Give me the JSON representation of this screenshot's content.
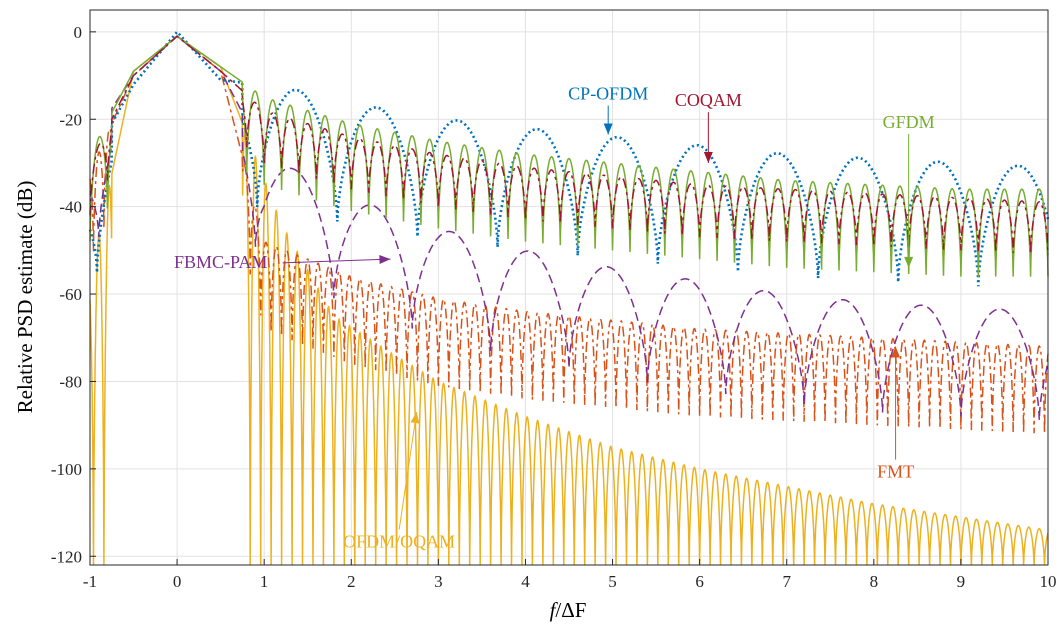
{
  "chart_data": {
    "type": "line",
    "xlabel": "f/ΔF",
    "xlabel_parts": [
      "f",
      "/ΔF"
    ],
    "ylabel": "Relative PSD estimate (dB)",
    "xlim": [
      -1,
      10
    ],
    "ylim": [
      -122,
      5
    ],
    "x_ticks": [
      "-1",
      "0",
      "1",
      "2",
      "3",
      "4",
      "5",
      "6",
      "7",
      "8",
      "9",
      "10"
    ],
    "y_ticks": [
      "0",
      "-20",
      "-40",
      "-60",
      "-80",
      "-100",
      "-120"
    ],
    "grid": true,
    "series": [
      {
        "name": "OFDM/OQAM",
        "color": "#EDB120",
        "style": "solid",
        "peaks": [
          [
            -1.0,
            -56
          ],
          [
            -0.5,
            -9
          ],
          [
            0,
            -1
          ],
          [
            0.5,
            -8
          ],
          [
            1.2,
            -44
          ],
          [
            1.8,
            -65
          ],
          [
            2.5,
            -74
          ],
          [
            3.0,
            -80
          ],
          [
            4.0,
            -88
          ],
          [
            5.0,
            -95
          ],
          [
            6.0,
            -100
          ],
          [
            7.0,
            -104
          ],
          [
            8.0,
            -108
          ],
          [
            9.0,
            -111
          ],
          [
            10.0,
            -114
          ]
        ],
        "null_floor": -122,
        "period": 0.12
      },
      {
        "name": "FMT",
        "color": "#D95319",
        "style": "dashdot",
        "peaks": [
          [
            -1.0,
            -32
          ],
          [
            -0.5,
            -10
          ],
          [
            0,
            -1
          ],
          [
            0.5,
            -9
          ],
          [
            1.0,
            -48
          ],
          [
            2.0,
            -56
          ],
          [
            3.0,
            -61
          ],
          [
            4.0,
            -64
          ],
          [
            5.0,
            -66
          ],
          [
            6.0,
            -68
          ],
          [
            7.0,
            -69
          ],
          [
            8.0,
            -70
          ],
          [
            9.0,
            -71
          ],
          [
            10.0,
            -72
          ]
        ],
        "null_offset": 20,
        "period": 0.12
      },
      {
        "name": "FBMC-PAM",
        "color": "#7E2F8E",
        "style": "dashed",
        "peaks": [
          [
            -1.0,
            -25
          ],
          [
            -0.5,
            -10
          ],
          [
            0,
            -1
          ],
          [
            0.5,
            -9
          ],
          [
            1.0,
            -28
          ],
          [
            2.0,
            -38
          ],
          [
            3.0,
            -45
          ],
          [
            4.0,
            -50
          ],
          [
            5.0,
            -54
          ],
          [
            6.0,
            -57
          ],
          [
            7.0,
            -60
          ],
          [
            8.0,
            -62
          ],
          [
            9.0,
            -63
          ],
          [
            10.0,
            -64
          ]
        ],
        "null_offset": 25,
        "period": 0.9
      },
      {
        "name": "CP-OFDM",
        "color": "#0072BD",
        "style": "dotted",
        "peaks": [
          [
            -1.0,
            -30
          ],
          [
            -0.5,
            -12
          ],
          [
            0,
            0
          ],
          [
            0.5,
            -11
          ],
          [
            1.3,
            -13
          ],
          [
            2.2,
            -17
          ],
          [
            3.1,
            -20
          ],
          [
            4.0,
            -22
          ],
          [
            5.0,
            -24
          ],
          [
            6.0,
            -26
          ],
          [
            7.0,
            -28
          ],
          [
            8.0,
            -29
          ],
          [
            9.0,
            -30
          ],
          [
            10.0,
            -31
          ]
        ],
        "null_offset": 28,
        "period": 0.92
      },
      {
        "name": "GFDM",
        "color": "#77AC30",
        "style": "solid",
        "peaks": [
          [
            -1.0,
            -28
          ],
          [
            -0.5,
            -9
          ],
          [
            0,
            -1
          ],
          [
            0.5,
            -8
          ],
          [
            1.0,
            -15
          ],
          [
            2.0,
            -21
          ],
          [
            3.0,
            -25
          ],
          [
            4.0,
            -28
          ],
          [
            5.0,
            -30
          ],
          [
            6.0,
            -32
          ],
          [
            7.0,
            -34
          ],
          [
            8.0,
            -35
          ],
          [
            9.0,
            -36
          ],
          [
            10.0,
            -36
          ]
        ],
        "null_offset": 20,
        "period": 0.2
      },
      {
        "name": "COQAM",
        "color": "#A2142F",
        "style": "dashdot",
        "peaks": [
          [
            -1.0,
            -30
          ],
          [
            -0.5,
            -10
          ],
          [
            0,
            -1
          ],
          [
            0.5,
            -9
          ],
          [
            1.0,
            -18
          ],
          [
            2.0,
            -24
          ],
          [
            3.0,
            -28
          ],
          [
            4.0,
            -31
          ],
          [
            5.0,
            -33
          ],
          [
            6.0,
            -35
          ],
          [
            7.0,
            -36
          ],
          [
            8.0,
            -37
          ],
          [
            9.0,
            -38
          ],
          [
            10.0,
            -39
          ]
        ],
        "null_offset": 12,
        "period": 0.2
      }
    ],
    "annotations": [
      {
        "text": "CP-OFDM",
        "color": "#0072BD",
        "label_at": [
          4.95,
          -15.5
        ],
        "arrow_to": [
          4.95,
          -23.5
        ]
      },
      {
        "text": "COQAM",
        "color": "#A2142F",
        "label_at": [
          6.1,
          -17
        ],
        "arrow_to": [
          6.1,
          -30
        ]
      },
      {
        "text": "GFDM",
        "color": "#77AC30",
        "label_at": [
          8.4,
          -22
        ],
        "arrow_to": [
          8.4,
          -54
        ]
      },
      {
        "text": "FBMC-PAM",
        "color": "#7E2F8E",
        "label_at": [
          0.5,
          -54
        ],
        "arrow_to": [
          2.45,
          -52
        ]
      },
      {
        "text": "FMT",
        "color": "#D95319",
        "label_at": [
          8.25,
          -102
        ],
        "arrow_to": [
          8.25,
          -72
        ]
      },
      {
        "text": "OFDM/OQAM",
        "color": "#EDB120",
        "label_at": [
          2.55,
          -118
        ],
        "arrow_to": [
          2.75,
          -87
        ]
      }
    ]
  }
}
